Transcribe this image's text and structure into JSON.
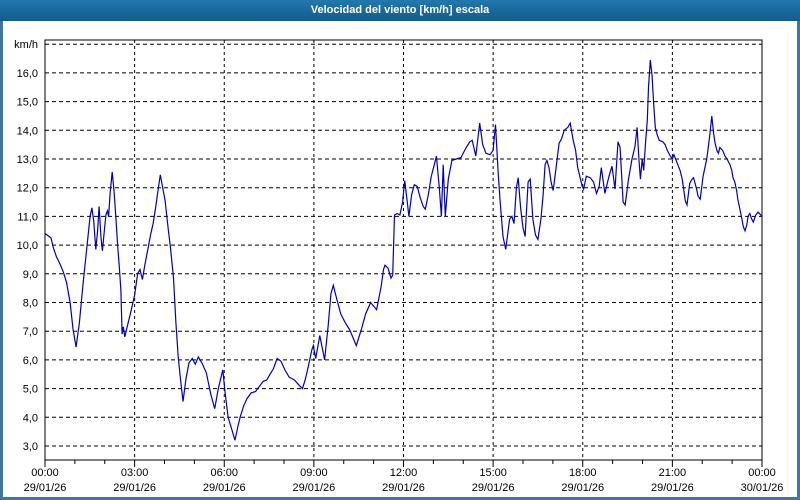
{
  "window": {
    "title": "Velocidad del viento [km/h] escala"
  },
  "colors": {
    "title_bar": "#186699",
    "window_border": "#3f74a4",
    "line": "#0000bb",
    "grid": "#000000",
    "background": "#ffffff",
    "text": "#000000"
  },
  "chart_data": {
    "type": "line",
    "title": "Velocidad del viento [km/h] escala",
    "grid": true,
    "legend": "none",
    "y_axis": {
      "unit_label": "km/h",
      "tick_values": [
        3,
        4,
        5,
        6,
        7,
        8,
        9,
        10,
        11,
        12,
        13,
        14,
        15,
        16
      ],
      "tick_labels": [
        "3,0",
        "4,0",
        "5,0",
        "6,0",
        "7,0",
        "8,0",
        "9,0",
        "10,0",
        "11,0",
        "12,0",
        "13,0",
        "14,0",
        "15,0",
        "16,0"
      ],
      "grid_max_value": 17,
      "ylim": [
        2.5,
        17.2
      ]
    },
    "x_axis": {
      "hours_range": [
        0,
        24
      ],
      "minor_tick_hours": 1,
      "ticks": [
        {
          "hour": 0,
          "time": "00:00",
          "date": "29/01/26"
        },
        {
          "hour": 3,
          "time": "03:00",
          "date": "29/01/26"
        },
        {
          "hour": 6,
          "time": "06:00",
          "date": "29/01/26"
        },
        {
          "hour": 9,
          "time": "09:00",
          "date": "29/01/26"
        },
        {
          "hour": 12,
          "time": "12:00",
          "date": "29/01/26"
        },
        {
          "hour": 15,
          "time": "15:00",
          "date": "29/01/26"
        },
        {
          "hour": 18,
          "time": "18:00",
          "date": "29/01/26"
        },
        {
          "hour": 21,
          "time": "21:00",
          "date": "29/01/26"
        },
        {
          "hour": 24,
          "time": "00:00",
          "date": "30/01/26"
        }
      ]
    },
    "series": [
      {
        "name": "Velocidad del viento",
        "color": "#0000bb",
        "points": [
          [
            0,
            10.4
          ],
          [
            0.1,
            10.33
          ],
          [
            0.2,
            10.25
          ],
          [
            0.28,
            9.9
          ],
          [
            0.38,
            9.6
          ],
          [
            0.5,
            9.35
          ],
          [
            0.62,
            9.05
          ],
          [
            0.72,
            8.7
          ],
          [
            0.84,
            8.0
          ],
          [
            0.94,
            7.05
          ],
          [
            1.04,
            6.45
          ],
          [
            1.15,
            7.3
          ],
          [
            1.27,
            8.6
          ],
          [
            1.41,
            10.0
          ],
          [
            1.51,
            11.0
          ],
          [
            1.57,
            11.3
          ],
          [
            1.63,
            10.85
          ],
          [
            1.7,
            9.85
          ],
          [
            1.76,
            10.5
          ],
          [
            1.81,
            11.35
          ],
          [
            1.87,
            10.3
          ],
          [
            1.92,
            9.8
          ],
          [
            1.98,
            10.45
          ],
          [
            2.04,
            11.05
          ],
          [
            2.09,
            11.2
          ],
          [
            2.13,
            11.0
          ],
          [
            2.18,
            11.8
          ],
          [
            2.25,
            12.55
          ],
          [
            2.31,
            11.9
          ],
          [
            2.37,
            11.0
          ],
          [
            2.43,
            10.0
          ],
          [
            2.49,
            9.2
          ],
          [
            2.54,
            8.4
          ],
          [
            2.58,
            6.9
          ],
          [
            2.62,
            7.15
          ],
          [
            2.67,
            6.8
          ],
          [
            2.76,
            7.2
          ],
          [
            2.88,
            7.7
          ],
          [
            3.0,
            8.25
          ],
          [
            3.1,
            9.0
          ],
          [
            3.18,
            9.15
          ],
          [
            3.26,
            8.8
          ],
          [
            3.34,
            9.3
          ],
          [
            3.45,
            9.9
          ],
          [
            3.53,
            10.35
          ],
          [
            3.62,
            10.75
          ],
          [
            3.71,
            11.35
          ],
          [
            3.79,
            11.95
          ],
          [
            3.86,
            12.45
          ],
          [
            3.94,
            12.0
          ],
          [
            4.02,
            11.55
          ],
          [
            4.12,
            10.6
          ],
          [
            4.2,
            9.9
          ],
          [
            4.3,
            8.85
          ],
          [
            4.38,
            7.3
          ],
          [
            4.46,
            6.1
          ],
          [
            4.54,
            5.3
          ],
          [
            4.62,
            4.55
          ],
          [
            4.72,
            5.35
          ],
          [
            4.82,
            5.9
          ],
          [
            4.93,
            6.05
          ],
          [
            5.03,
            5.85
          ],
          [
            5.13,
            6.1
          ],
          [
            5.25,
            5.9
          ],
          [
            5.4,
            5.55
          ],
          [
            5.55,
            4.8
          ],
          [
            5.68,
            4.3
          ],
          [
            5.8,
            5.0
          ],
          [
            5.88,
            5.35
          ],
          [
            5.95,
            5.65
          ],
          [
            6.02,
            4.95
          ],
          [
            6.13,
            4.0
          ],
          [
            6.26,
            3.55
          ],
          [
            6.36,
            3.2
          ],
          [
            6.46,
            3.7
          ],
          [
            6.53,
            4.0
          ],
          [
            6.65,
            4.4
          ],
          [
            6.76,
            4.65
          ],
          [
            6.9,
            4.85
          ],
          [
            7.05,
            4.9
          ],
          [
            7.3,
            5.25
          ],
          [
            7.42,
            5.3
          ],
          [
            7.53,
            5.5
          ],
          [
            7.65,
            5.7
          ],
          [
            7.77,
            6.05
          ],
          [
            7.9,
            5.95
          ],
          [
            8.03,
            5.65
          ],
          [
            8.17,
            5.4
          ],
          [
            8.35,
            5.3
          ],
          [
            8.52,
            5.1
          ],
          [
            8.62,
            5.0
          ],
          [
            8.72,
            5.35
          ],
          [
            8.82,
            5.8
          ],
          [
            8.93,
            6.35
          ],
          [
            8.98,
            6.5
          ],
          [
            9.06,
            6.05
          ],
          [
            9.2,
            6.85
          ],
          [
            9.36,
            6.0
          ],
          [
            9.48,
            7.2
          ],
          [
            9.57,
            8.3
          ],
          [
            9.65,
            8.6
          ],
          [
            9.77,
            8.1
          ],
          [
            9.9,
            7.6
          ],
          [
            10.05,
            7.3
          ],
          [
            10.2,
            7.05
          ],
          [
            10.42,
            6.5
          ],
          [
            10.6,
            7.1
          ],
          [
            10.73,
            7.6
          ],
          [
            10.9,
            8.0
          ],
          [
            11.1,
            7.75
          ],
          [
            11.25,
            8.55
          ],
          [
            11.33,
            9.15
          ],
          [
            11.38,
            9.3
          ],
          [
            11.48,
            9.2
          ],
          [
            11.58,
            8.85
          ],
          [
            11.64,
            8.95
          ],
          [
            11.7,
            11.05
          ],
          [
            11.79,
            11.1
          ],
          [
            11.88,
            11.05
          ],
          [
            11.97,
            11.5
          ],
          [
            12.04,
            12.25
          ],
          [
            12.12,
            11.55
          ],
          [
            12.18,
            11.0
          ],
          [
            12.27,
            11.75
          ],
          [
            12.36,
            12.1
          ],
          [
            12.46,
            12.05
          ],
          [
            12.56,
            11.65
          ],
          [
            12.66,
            11.35
          ],
          [
            12.73,
            11.25
          ],
          [
            12.83,
            11.75
          ],
          [
            12.93,
            12.4
          ],
          [
            13.03,
            12.8
          ],
          [
            13.1,
            13.1
          ],
          [
            13.2,
            12.0
          ],
          [
            13.27,
            11.0
          ],
          [
            13.33,
            12.8
          ],
          [
            13.4,
            11.0
          ],
          [
            13.5,
            12.3
          ],
          [
            13.62,
            12.95
          ],
          [
            13.77,
            13.0
          ],
          [
            13.92,
            13.05
          ],
          [
            14.1,
            13.4
          ],
          [
            14.22,
            13.6
          ],
          [
            14.3,
            13.65
          ],
          [
            14.42,
            13.1
          ],
          [
            14.55,
            14.25
          ],
          [
            14.65,
            13.5
          ],
          [
            14.76,
            13.2
          ],
          [
            14.9,
            13.15
          ],
          [
            15.0,
            13.3
          ],
          [
            15.08,
            14.2
          ],
          [
            15.17,
            12.5
          ],
          [
            15.24,
            11.45
          ],
          [
            15.33,
            10.3
          ],
          [
            15.42,
            9.85
          ],
          [
            15.55,
            10.9
          ],
          [
            15.63,
            11.0
          ],
          [
            15.7,
            10.75
          ],
          [
            15.78,
            12.0
          ],
          [
            15.84,
            12.35
          ],
          [
            15.92,
            11.3
          ],
          [
            16.0,
            10.6
          ],
          [
            16.07,
            10.3
          ],
          [
            16.17,
            12.2
          ],
          [
            16.24,
            12.3
          ],
          [
            16.33,
            10.9
          ],
          [
            16.42,
            10.35
          ],
          [
            16.5,
            10.2
          ],
          [
            16.6,
            10.9
          ],
          [
            16.67,
            11.7
          ],
          [
            16.74,
            12.8
          ],
          [
            16.8,
            12.95
          ],
          [
            16.87,
            12.7
          ],
          [
            16.94,
            12.2
          ],
          [
            17.01,
            11.9
          ],
          [
            17.13,
            12.9
          ],
          [
            17.21,
            13.55
          ],
          [
            17.29,
            13.7
          ],
          [
            17.38,
            14.0
          ],
          [
            17.5,
            14.1
          ],
          [
            17.58,
            14.25
          ],
          [
            17.68,
            13.65
          ],
          [
            17.76,
            13.3
          ],
          [
            17.83,
            12.7
          ],
          [
            17.9,
            12.4
          ],
          [
            17.98,
            12.05
          ],
          [
            18.03,
            11.95
          ],
          [
            18.12,
            12.4
          ],
          [
            18.25,
            12.35
          ],
          [
            18.36,
            12.2
          ],
          [
            18.46,
            11.8
          ],
          [
            18.55,
            12.05
          ],
          [
            18.62,
            12.7
          ],
          [
            18.74,
            11.8
          ],
          [
            18.88,
            12.4
          ],
          [
            18.98,
            12.75
          ],
          [
            19.08,
            11.95
          ],
          [
            19.18,
            13.6
          ],
          [
            19.25,
            13.4
          ],
          [
            19.35,
            11.5
          ],
          [
            19.42,
            11.4
          ],
          [
            19.53,
            12.3
          ],
          [
            19.65,
            13.0
          ],
          [
            19.75,
            13.45
          ],
          [
            19.82,
            14.1
          ],
          [
            19.88,
            13.0
          ],
          [
            19.93,
            12.3
          ],
          [
            19.99,
            13.0
          ],
          [
            20.04,
            12.6
          ],
          [
            20.1,
            13.55
          ],
          [
            20.16,
            14.35
          ],
          [
            20.2,
            15.5
          ],
          [
            20.26,
            16.45
          ],
          [
            20.32,
            15.9
          ],
          [
            20.37,
            14.95
          ],
          [
            20.43,
            14.1
          ],
          [
            20.49,
            13.85
          ],
          [
            20.56,
            13.65
          ],
          [
            20.68,
            13.6
          ],
          [
            20.76,
            13.5
          ],
          [
            20.83,
            13.3
          ],
          [
            20.93,
            13.1
          ],
          [
            21.0,
            13.0
          ],
          [
            21.05,
            13.15
          ],
          [
            21.18,
            12.8
          ],
          [
            21.26,
            12.6
          ],
          [
            21.33,
            12.3
          ],
          [
            21.38,
            11.95
          ],
          [
            21.43,
            11.55
          ],
          [
            21.49,
            11.4
          ],
          [
            21.58,
            12.15
          ],
          [
            21.66,
            12.3
          ],
          [
            21.71,
            12.35
          ],
          [
            21.81,
            11.95
          ],
          [
            21.86,
            11.7
          ],
          [
            21.93,
            11.6
          ],
          [
            22.03,
            12.4
          ],
          [
            22.15,
            13.0
          ],
          [
            22.19,
            13.3
          ],
          [
            22.26,
            13.9
          ],
          [
            22.32,
            14.5
          ],
          [
            22.38,
            13.9
          ],
          [
            22.43,
            13.55
          ],
          [
            22.49,
            13.3
          ],
          [
            22.54,
            13.2
          ],
          [
            22.59,
            13.4
          ],
          [
            22.68,
            13.3
          ],
          [
            22.76,
            13.1
          ],
          [
            22.83,
            13.0
          ],
          [
            22.93,
            12.8
          ],
          [
            22.99,
            12.6
          ],
          [
            23.03,
            12.35
          ],
          [
            23.09,
            12.2
          ],
          [
            23.15,
            11.9
          ],
          [
            23.19,
            11.6
          ],
          [
            23.26,
            11.25
          ],
          [
            23.33,
            10.9
          ],
          [
            23.37,
            10.65
          ],
          [
            23.43,
            10.5
          ],
          [
            23.49,
            10.7
          ],
          [
            23.53,
            11.0
          ],
          [
            23.59,
            11.1
          ],
          [
            23.66,
            10.9
          ],
          [
            23.71,
            10.8
          ],
          [
            23.79,
            11.05
          ],
          [
            23.87,
            11.15
          ],
          [
            24.0,
            11.0
          ]
        ]
      }
    ]
  }
}
